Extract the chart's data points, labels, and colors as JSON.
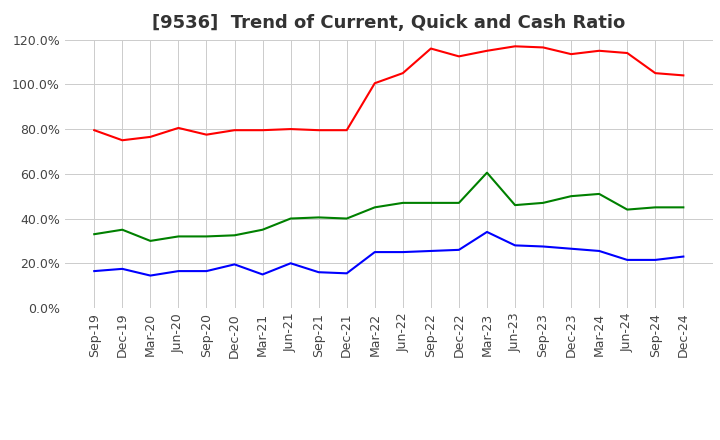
{
  "title": "[9536]  Trend of Current, Quick and Cash Ratio",
  "x_labels": [
    "Sep-19",
    "Dec-19",
    "Mar-20",
    "Jun-20",
    "Sep-20",
    "Dec-20",
    "Mar-21",
    "Jun-21",
    "Sep-21",
    "Dec-21",
    "Mar-22",
    "Jun-22",
    "Sep-22",
    "Dec-22",
    "Mar-23",
    "Jun-23",
    "Sep-23",
    "Dec-23",
    "Mar-24",
    "Jun-24",
    "Sep-24",
    "Dec-24"
  ],
  "current_ratio": [
    79.5,
    75.0,
    76.5,
    80.5,
    77.5,
    79.5,
    79.5,
    80.0,
    79.5,
    79.5,
    100.5,
    105.0,
    116.0,
    112.5,
    115.0,
    117.0,
    116.5,
    113.5,
    115.0,
    114.0,
    105.0,
    104.0
  ],
  "quick_ratio": [
    33.0,
    35.0,
    30.0,
    32.0,
    32.0,
    32.5,
    35.0,
    40.0,
    40.5,
    40.0,
    45.0,
    47.0,
    47.0,
    47.0,
    60.5,
    46.0,
    47.0,
    50.0,
    51.0,
    44.0,
    45.0,
    45.0
  ],
  "cash_ratio": [
    16.5,
    17.5,
    14.5,
    16.5,
    16.5,
    19.5,
    15.0,
    20.0,
    16.0,
    15.5,
    25.0,
    25.0,
    25.5,
    26.0,
    34.0,
    28.0,
    27.5,
    26.5,
    25.5,
    21.5,
    21.5,
    23.0
  ],
  "current_color": "#ff0000",
  "quick_color": "#008000",
  "cash_color": "#0000ff",
  "ylim": [
    0.0,
    120.0
  ],
  "yticks": [
    0.0,
    20.0,
    40.0,
    60.0,
    80.0,
    100.0,
    120.0
  ],
  "background_color": "#ffffff",
  "grid_color": "#cccccc",
  "title_fontsize": 13,
  "tick_fontsize": 9,
  "legend_fontsize": 10
}
